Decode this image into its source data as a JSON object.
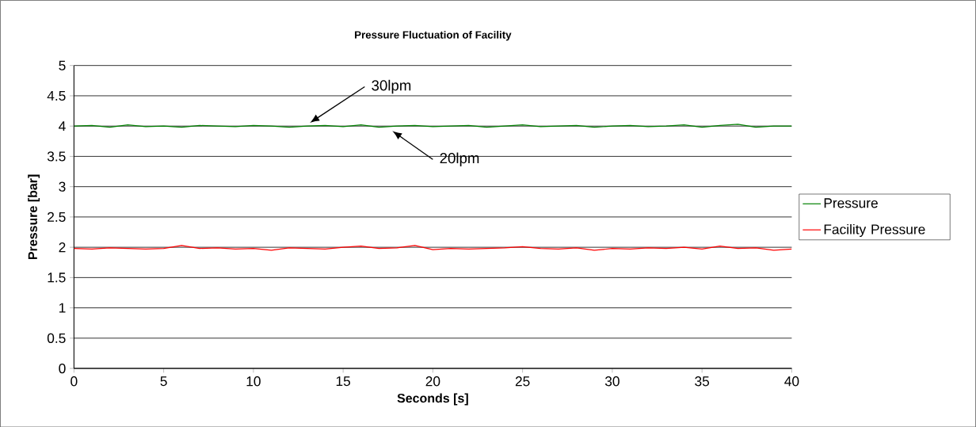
{
  "chart_data": {
    "type": "line",
    "title": "Pressure Fluctuation of Facility",
    "xlabel": "Seconds [s]",
    "ylabel": "Pressure [bar]",
    "x": [
      0,
      1,
      2,
      3,
      4,
      5,
      6,
      7,
      8,
      9,
      10,
      11,
      12,
      13,
      14,
      15,
      16,
      17,
      18,
      19,
      20,
      21,
      22,
      23,
      24,
      25,
      26,
      27,
      28,
      29,
      30,
      31,
      32,
      33,
      34,
      35,
      36,
      37,
      38,
      39,
      40
    ],
    "series": [
      {
        "name": "Pressure",
        "color": "#008000",
        "values": [
          4.0,
          4.01,
          3.98,
          4.02,
          3.99,
          4.0,
          3.98,
          4.01,
          4.0,
          3.99,
          4.01,
          4.0,
          3.98,
          4.0,
          4.01,
          3.99,
          4.02,
          3.98,
          4.0,
          4.01,
          3.99,
          4.0,
          4.01,
          3.98,
          4.0,
          4.02,
          3.99,
          4.0,
          4.01,
          3.98,
          4.0,
          4.01,
          3.99,
          4.0,
          4.02,
          3.98,
          4.01,
          4.03,
          3.98,
          4.0,
          4.0
        ]
      },
      {
        "name": "Facility Pressure",
        "color": "#ff0000",
        "values": [
          1.98,
          1.97,
          1.99,
          1.98,
          1.97,
          1.98,
          2.03,
          1.98,
          1.99,
          1.97,
          1.98,
          1.95,
          1.99,
          1.98,
          1.97,
          2.0,
          2.02,
          1.98,
          1.99,
          2.03,
          1.96,
          1.98,
          1.97,
          1.98,
          1.99,
          2.01,
          1.98,
          1.97,
          1.99,
          1.95,
          1.98,
          1.97,
          1.99,
          1.98,
          2.0,
          1.97,
          2.02,
          1.98,
          1.99,
          1.95,
          1.97
        ]
      }
    ],
    "xlim": [
      0,
      40
    ],
    "xticks": [
      0,
      5,
      10,
      15,
      20,
      25,
      30,
      35,
      40
    ],
    "ylim": [
      0,
      5
    ],
    "yticks": [
      0,
      0.5,
      1,
      1.5,
      2,
      2.5,
      3,
      3.5,
      4,
      4.5,
      5
    ],
    "grid": "y",
    "legend": "right",
    "annotations": [
      "30lpm",
      "20lpm"
    ]
  }
}
